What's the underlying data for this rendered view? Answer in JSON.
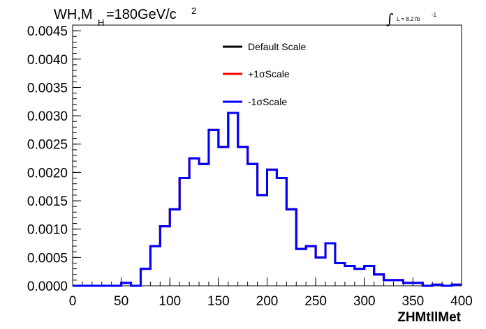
{
  "chart_data": {
    "type": "line",
    "title": "WH,M",
    "title_subscript": "H",
    "title_rest": "=180GeV/c",
    "title_superscript": "2",
    "lumi_text": "L = 8.2 fb",
    "lumi_superscript": "-1",
    "xlabel": "ZHMtllMet",
    "xlim": [
      0,
      400
    ],
    "ylim": [
      0,
      0.0046
    ],
    "x_ticks": [
      0,
      50,
      100,
      150,
      200,
      250,
      300,
      350,
      400
    ],
    "x_tick_labels": [
      "0",
      "50",
      "100",
      "150",
      "200",
      "250",
      "300",
      "350",
      "400"
    ],
    "y_ticks": [
      0,
      0.0005,
      0.001,
      0.0015,
      0.002,
      0.0025,
      0.003,
      0.0035,
      0.004,
      0.0045
    ],
    "y_tick_labels": [
      "0.0000",
      "0.0005",
      "0.0010",
      "0.0015",
      "0.0020",
      "0.0025",
      "0.0030",
      "0.0035",
      "0.0040",
      "0.0045"
    ],
    "bin_edges": [
      0,
      10,
      20,
      30,
      40,
      50,
      60,
      70,
      80,
      90,
      100,
      110,
      120,
      130,
      140,
      150,
      160,
      170,
      180,
      190,
      200,
      210,
      220,
      230,
      240,
      250,
      260,
      270,
      280,
      290,
      300,
      310,
      320,
      330,
      340,
      350,
      360,
      370,
      380,
      390,
      400
    ],
    "legend": [
      {
        "name": "Default Scale",
        "color": "#000000"
      },
      {
        "name": "+1σScale",
        "color": "#ff0000"
      },
      {
        "name": "-1σScale",
        "color": "#0000ff"
      }
    ],
    "series": [
      {
        "name": "Default Scale",
        "color": "#000000",
        "values": [
          0,
          0,
          0,
          0,
          0,
          5e-05,
          0,
          0.0003,
          0.0007,
          0.00105,
          0.00135,
          0.0019,
          0.00225,
          0.00215,
          0.00275,
          0.00245,
          0.00305,
          0.00245,
          0.00215,
          0.0016,
          0.00205,
          0.0019,
          0.00135,
          0.00065,
          0.0007,
          0.0005,
          0.00075,
          0.0004,
          0.00035,
          0.0003,
          0.00035,
          0.0002,
          0.0001,
          0.0001,
          5e-05,
          5e-05,
          0,
          2e-05,
          0,
          2e-05
        ]
      },
      {
        "name": "+1σScale",
        "color": "#ff0000",
        "values": [
          0,
          0,
          0,
          0,
          0,
          5e-05,
          0,
          0.0003,
          0.0007,
          0.00105,
          0.00135,
          0.0019,
          0.00225,
          0.00215,
          0.00275,
          0.00245,
          0.00305,
          0.00245,
          0.00215,
          0.0016,
          0.00205,
          0.0019,
          0.00135,
          0.00065,
          0.0007,
          0.0005,
          0.00075,
          0.0004,
          0.00035,
          0.0003,
          0.00035,
          0.0002,
          0.0001,
          0.0001,
          5e-05,
          5e-05,
          0,
          2e-05,
          0,
          2e-05
        ]
      },
      {
        "name": "-1σScale",
        "color": "#0000ff",
        "values": [
          0,
          0,
          0,
          0,
          0,
          5e-05,
          0,
          0.0003,
          0.0007,
          0.00105,
          0.00135,
          0.0019,
          0.00225,
          0.00215,
          0.00275,
          0.00245,
          0.00305,
          0.00245,
          0.00215,
          0.0016,
          0.00205,
          0.0019,
          0.00135,
          0.00065,
          0.0007,
          0.0005,
          0.00075,
          0.0004,
          0.00035,
          0.0003,
          0.00035,
          0.0002,
          0.0001,
          0.0001,
          5e-05,
          5e-05,
          0,
          2e-05,
          0,
          2e-05
        ]
      }
    ]
  }
}
